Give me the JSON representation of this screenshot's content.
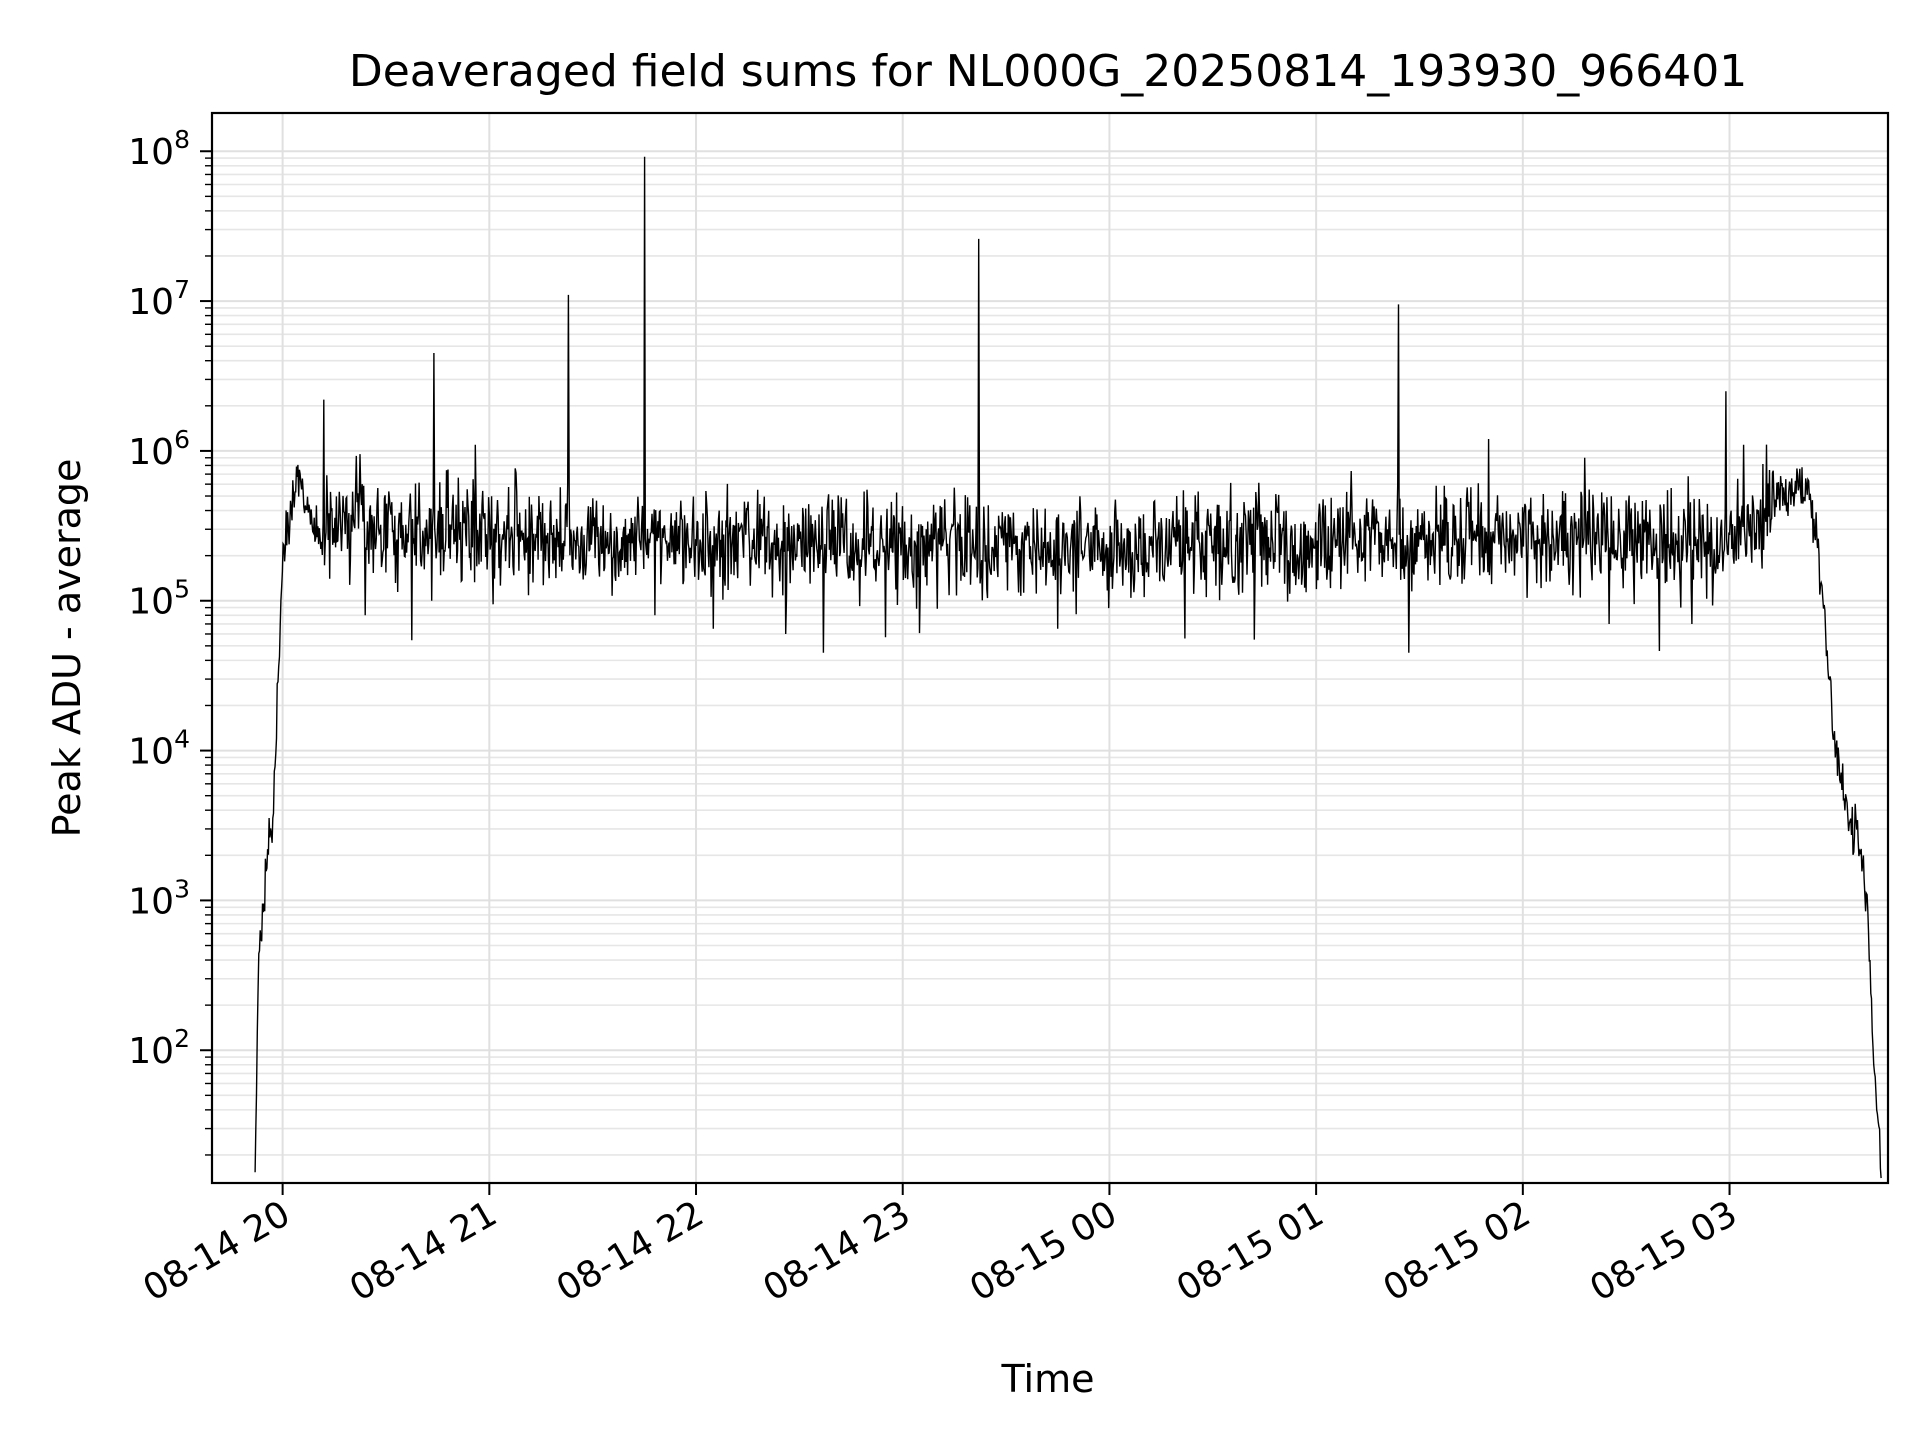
{
  "chart_data": {
    "type": "line",
    "title": "Deaveraged field sums for NL000G_20250814_193930_966401",
    "xlabel": "Time",
    "ylabel": "Peak ADU - average",
    "x_unit": "hour",
    "xlim": [
      "08-14 19:39:30",
      "08-15 03:46:00"
    ],
    "yscale": "log",
    "ylim": [
      13,
      180000000
    ],
    "grid": "major and minor",
    "line_color": "#000000",
    "x_ticks": [
      {
        "value": "08-14 20:00",
        "label": "08-14 20"
      },
      {
        "value": "08-14 21:00",
        "label": "08-14 21"
      },
      {
        "value": "08-14 22:00",
        "label": "08-14 22"
      },
      {
        "value": "08-14 23:00",
        "label": "08-14 23"
      },
      {
        "value": "08-15 00:00",
        "label": "08-15 00"
      },
      {
        "value": "08-15 01:00",
        "label": "08-15 01"
      },
      {
        "value": "08-15 02:00",
        "label": "08-15 02"
      },
      {
        "value": "08-15 03:00",
        "label": "08-15 03"
      }
    ],
    "y_ticks": [
      {
        "value": 100,
        "base": "10",
        "exp": "2"
      },
      {
        "value": 1000,
        "base": "10",
        "exp": "3"
      },
      {
        "value": 10000,
        "base": "10",
        "exp": "4"
      },
      {
        "value": 100000,
        "base": "10",
        "exp": "5"
      },
      {
        "value": 1000000,
        "base": "10",
        "exp": "6"
      },
      {
        "value": 10000000,
        "base": "10",
        "exp": "7"
      },
      {
        "value": 100000000,
        "base": "10",
        "exp": "8"
      }
    ],
    "series": [
      {
        "x": [
          "08-14 19:52",
          "08-14 19:53",
          "08-14 19:54",
          "08-14 19:55",
          "08-14 19:56",
          "08-14 19:57",
          "08-14 19:58",
          "08-14 19:59",
          "08-14 20:00",
          "08-14 20:01",
          "08-14 20:02",
          "08-14 20:03",
          "08-14 20:04",
          "08-14 20:05",
          "08-14 20:06",
          "08-14 20:08",
          "08-14 20:10",
          "08-14 20:12",
          "08-14 20:14",
          "08-14 20:16",
          "08-14 20:18",
          "08-14 20:20",
          "08-14 20:23",
          "08-14 20:26",
          "08-14 20:29",
          "08-14 20:33",
          "08-14 20:38",
          "08-14 20:43",
          "08-14 20:47",
          "08-14 20:52",
          "08-14 20:58",
          "08-14 21:05",
          "08-14 21:12",
          "08-14 21:18",
          "08-14 21:23",
          "08-14 21:27",
          "08-14 21:35",
          "08-14 21:45",
          "08-14 21:50",
          "08-14 22:00",
          "08-14 22:07",
          "08-14 22:10",
          "08-14 22:20",
          "08-14 22:30",
          "08-14 22:40",
          "08-14 22:48",
          "08-14 22:50",
          "08-14 23:00",
          "08-14 23:10",
          "08-14 23:20",
          "08-14 23:30",
          "08-14 23:45",
          "08-15 00:00",
          "08-15 00:15",
          "08-15 00:30",
          "08-15 00:45",
          "08-15 01:00",
          "08-15 01:15",
          "08-15 01:30",
          "08-15 01:45",
          "08-15 02:00",
          "08-15 02:15",
          "08-15 02:30",
          "08-15 02:45",
          "08-15 02:55",
          "08-15 03:00",
          "08-15 03:05",
          "08-15 03:10",
          "08-15 03:13",
          "08-15 03:15",
          "08-15 03:17",
          "08-15 03:19",
          "08-15 03:21",
          "08-15 03:23",
          "08-15 03:25",
          "08-15 03:27",
          "08-15 03:29",
          "08-15 03:31",
          "08-15 03:33",
          "08-15 03:35",
          "08-15 03:37",
          "08-15 03:38",
          "08-15 03:39",
          "08-15 03:40",
          "08-15 03:41",
          "08-15 03:42",
          "08-15 03:43",
          "08-15 03:44"
        ],
        "y": [
          15,
          400,
          600,
          1200,
          2500,
          3000,
          10000,
          50000,
          200000,
          300000,
          380000,
          500000,
          600000,
          650000,
          500000,
          350000,
          280000,
          300000,
          350000,
          380000,
          300000,
          350000,
          320000,
          300000,
          330000,
          300000,
          280000,
          330000,
          280000,
          300000,
          260000,
          280000,
          270000,
          250000,
          260000,
          280000,
          240000,
          260000,
          240000,
          230000,
          220000,
          250000,
          240000,
          220000,
          250000,
          230000,
          240000,
          230000,
          240000,
          230000,
          250000,
          240000,
          220000,
          230000,
          240000,
          240000,
          230000,
          250000,
          240000,
          250000,
          260000,
          250000,
          240000,
          230000,
          220000,
          260000,
          300000,
          400000,
          480000,
          550000,
          500000,
          560000,
          550000,
          520000,
          300000,
          100000,
          30000,
          10000,
          5000,
          3000,
          3200,
          2000,
          1500,
          800,
          300,
          100,
          30,
          13
        ]
      }
    ],
    "spikes": [
      {
        "x": "08-14 20:12",
        "y": 2200000
      },
      {
        "x": "08-14 20:24",
        "y": 1300000
      },
      {
        "x": "08-14 20:44",
        "y": 4500000
      },
      {
        "x": "08-14 20:56",
        "y": 1100000
      },
      {
        "x": "08-14 21:23",
        "y": 11000000
      },
      {
        "x": "08-14 21:45",
        "y": 92000000
      },
      {
        "x": "08-14 23:22",
        "y": 26000000
      },
      {
        "x": "08-15 01:24",
        "y": 9500000
      },
      {
        "x": "08-15 01:50",
        "y": 1200000
      },
      {
        "x": "08-15 02:18",
        "y": 900000
      },
      {
        "x": "08-15 02:59",
        "y": 2500000
      },
      {
        "x": "08-15 03:04",
        "y": 1100000
      }
    ],
    "dips": [
      {
        "x": "08-14 20:24",
        "y": 80000
      },
      {
        "x": "08-14 21:48",
        "y": 80000
      },
      {
        "x": "08-14 22:05",
        "y": 65000
      },
      {
        "x": "08-14 22:26",
        "y": 60000
      },
      {
        "x": "08-14 22:37",
        "y": 45000
      },
      {
        "x": "08-14 22:55",
        "y": 57000
      },
      {
        "x": "08-14 23:45",
        "y": 65000
      },
      {
        "x": "08-15 00:22",
        "y": 56000
      },
      {
        "x": "08-15 00:42",
        "y": 55000
      },
      {
        "x": "08-15 01:27",
        "y": 45000
      },
      {
        "x": "08-15 02:25",
        "y": 70000
      },
      {
        "x": "08-15 02:49",
        "y": 70000
      }
    ]
  }
}
